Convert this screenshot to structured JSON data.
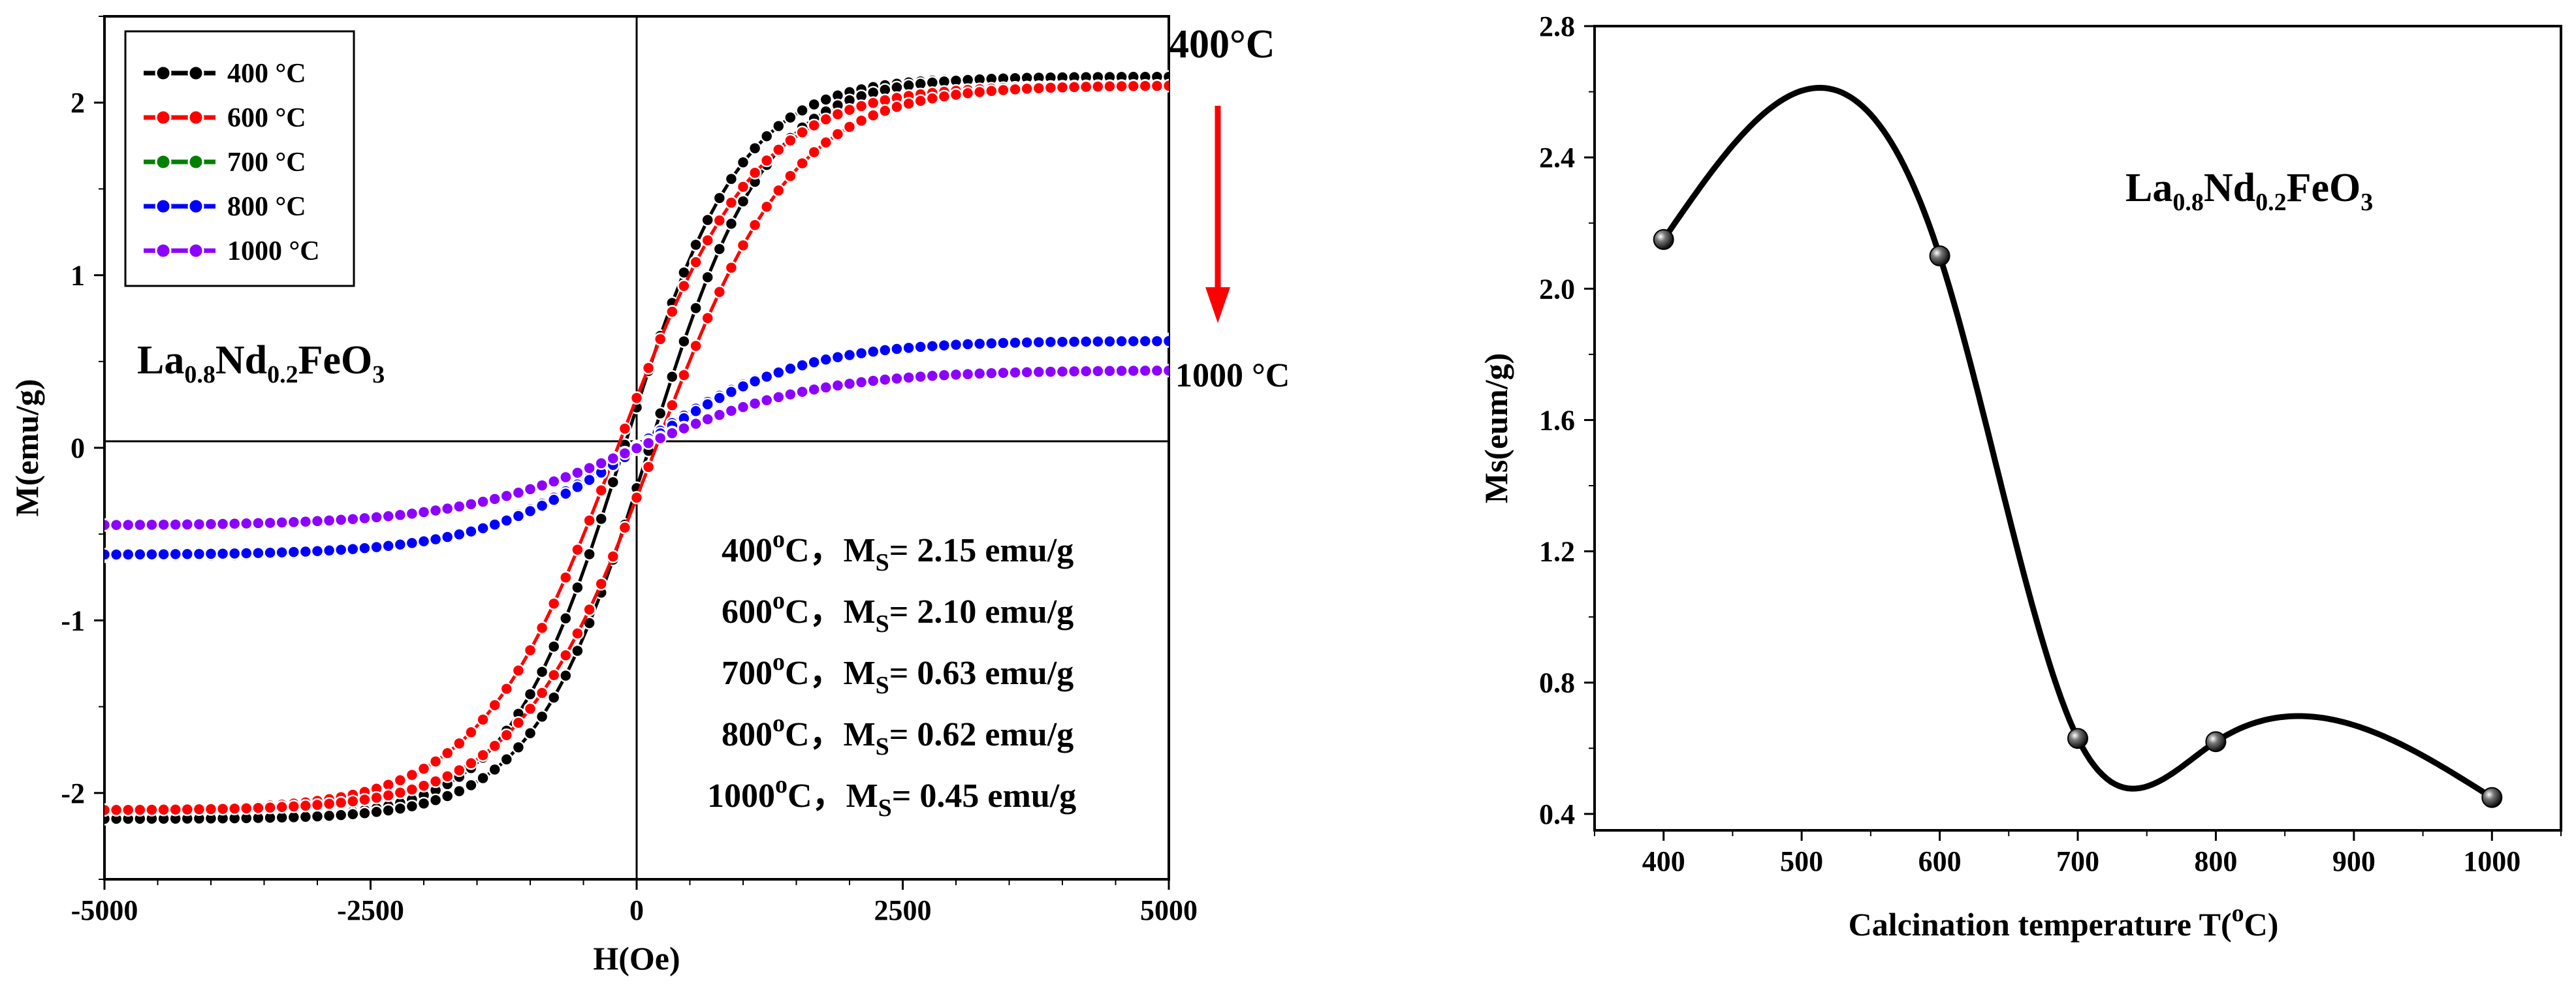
{
  "chart_data": [
    {
      "type": "line",
      "panel": "left",
      "title": "",
      "xlabel": "H(Oe)",
      "ylabel": "M(emu/g)",
      "xlim": [
        -5000,
        5000
      ],
      "ylim": [
        -2.5,
        2.5
      ],
      "x_ticks": [
        -5000,
        -2500,
        0,
        2500,
        5000
      ],
      "y_ticks": [
        -2,
        -1,
        0,
        1,
        2
      ],
      "sample_label": {
        "main1": "La",
        "sub1": "0.8",
        "main2": "Nd",
        "sub2": "0.2",
        "main3": "FeO",
        "sub3": "3"
      },
      "top_label": "400°C",
      "bottom_label": "1000 °C",
      "arrow_color": "#ff0000",
      "legend": {
        "position": "top-left",
        "entries": [
          {
            "label": "400 °C",
            "color": "#000000"
          },
          {
            "label": "600 °C",
            "color": "#ff0000"
          },
          {
            "label": "700 °C",
            "color": "#008000"
          },
          {
            "label": "800 °C",
            "color": "#0000ff"
          },
          {
            "label": "1000 °C",
            "color": "#8b00ff"
          }
        ]
      },
      "series": [
        {
          "name": "400 °C",
          "color": "#000000",
          "Ms": 2.15,
          "Hc": 120,
          "H0": 1100,
          "xcoord": "H (Oe)",
          "note": "saturating loop"
        },
        {
          "name": "600 °C",
          "color": "#ff0000",
          "Ms": 2.1,
          "Hc": 180,
          "H0": 1300,
          "note": "saturating loop"
        },
        {
          "name": "700 °C",
          "color": "#008000",
          "Ms": 0.63,
          "Hc": 20,
          "H0": 1500,
          "note": "saturating loop"
        },
        {
          "name": "800 °C",
          "color": "#0000ff",
          "Ms": 0.62,
          "Hc": 20,
          "H0": 1500,
          "note": "saturating loop"
        },
        {
          "name": "1000 °C",
          "color": "#8b00ff",
          "Ms": 0.45,
          "Hc": 10,
          "H0": 1700,
          "note": "saturating loop"
        }
      ],
      "annotations": [
        {
          "temp": "400",
          "deg": "o",
          "unit": "C",
          "sep": "，",
          "M": "M",
          "S": "S",
          "value": "= 2.15 emu/g"
        },
        {
          "temp": "600",
          "deg": "o",
          "unit": "C",
          "sep": "，",
          "M": "M",
          "S": "S",
          "value": "= 2.10 emu/g"
        },
        {
          "temp": "700",
          "deg": "o",
          "unit": "C",
          "sep": "，",
          "M": "M",
          "S": "S",
          "value": "= 0.63 emu/g"
        },
        {
          "temp": "800",
          "deg": "o",
          "unit": "C",
          "sep": "，",
          "M": "M",
          "S": "S",
          "value": "= 0.62 emu/g"
        },
        {
          "temp": "1000",
          "deg": "o",
          "unit": "C",
          "sep": "，",
          "M": "M",
          "S": "S",
          "value": "= 0.45 emu/g"
        }
      ]
    },
    {
      "type": "line",
      "panel": "right",
      "title": "",
      "xlabel": "Calcination temperature T(°C)",
      "ylabel": "Ms(eum/g)",
      "xlim": [
        350,
        1050
      ],
      "ylim": [
        0.35,
        2.8
      ],
      "x_ticks": [
        400,
        500,
        600,
        700,
        800,
        900,
        1000
      ],
      "y_ticks": [
        0.4,
        0.8,
        1.2,
        1.6,
        2.0,
        2.4,
        2.8
      ],
      "y_tick_labels": [
        "0.4",
        "0.8",
        "1.2",
        "1.6",
        "2.0",
        "2.4",
        "2.8"
      ],
      "sample_label": {
        "main1": "La",
        "sub1": "0.8",
        "main2": "Nd",
        "sub2": "0.2",
        "main3": "FeO",
        "sub3": "3"
      },
      "x": [
        400,
        600,
        700,
        800,
        1000
      ],
      "values": [
        2.15,
        2.1,
        0.63,
        0.62,
        0.45
      ],
      "curve_color": "#000000"
    }
  ]
}
